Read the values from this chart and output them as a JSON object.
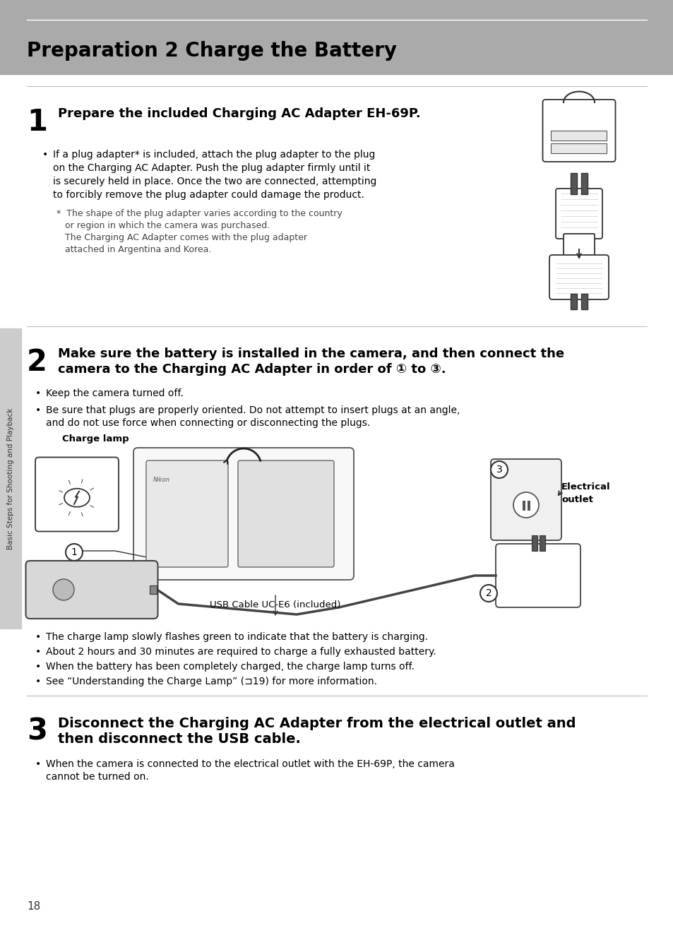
{
  "bg_color": "#ffffff",
  "header_bg": "#aaaaaa",
  "header_text": "Preparation 2 Charge the Battery",
  "header_text_color": "#000000",
  "sidebar_bg": "#cccccc",
  "page_number": "18",
  "step1_num": "1",
  "step1_heading": "Prepare the included Charging AC Adapter EH-69P.",
  "step1_bullet1_line1": "If a plug adapter* is included, attach the plug adapter to the plug",
  "step1_bullet1_line2": "on the Charging AC Adapter. Push the plug adapter firmly until it",
  "step1_bullet1_line3": "is securely held in place. Once the two are connected, attempting",
  "step1_bullet1_line4": "to forcibly remove the plug adapter could damage the product.",
  "step1_note_line1": "*  The shape of the plug adapter varies according to the country",
  "step1_note_line2": "   or region in which the camera was purchased.",
  "step1_note_line3": "   The Charging AC Adapter comes with the plug adapter",
  "step1_note_line4": "   attached in Argentina and Korea.",
  "step2_num": "2",
  "step2_heading_line1": "Make sure the battery is installed in the camera, and then connect the",
  "step2_heading_line2": "camera to the Charging AC Adapter in order of ① to ③.",
  "step2_bullet1": "Keep the camera turned off.",
  "step2_bullet2_line1": "Be sure that plugs are properly oriented. Do not attempt to insert plugs at an angle,",
  "step2_bullet2_line2": "and do not use force when connecting or disconnecting the plugs.",
  "step2_charge_lamp_label": "Charge lamp",
  "step2_electrical_label1": "Electrical",
  "step2_electrical_label2": "outlet",
  "step2_usb_label": "USB Cable UC-E6 (included)",
  "step2_bottom_bullet1": "The charge lamp slowly flashes green to indicate that the battery is charging.",
  "step2_bottom_bullet2": "About 2 hours and 30 minutes are required to charge a fully exhausted battery.",
  "step2_bottom_bullet3": "When the battery has been completely charged, the charge lamp turns off.",
  "step2_bottom_bullet4": "See “Understanding the Charge Lamp” (⊐19) for more information.",
  "step3_num": "3",
  "step3_heading_line1": "Disconnect the Charging AC Adapter from the electrical outlet and",
  "step3_heading_line2": "then disconnect the USB cable.",
  "step3_bullet1_line1": "When the camera is connected to the electrical outlet with the EH-69P, the camera",
  "step3_bullet1_line2": "cannot be turned on.",
  "sidebar_text": "Basic Steps for Shooting and Playback",
  "line_color": "#bbbbbb",
  "text_color": "#222222",
  "small_text_color": "#444444"
}
